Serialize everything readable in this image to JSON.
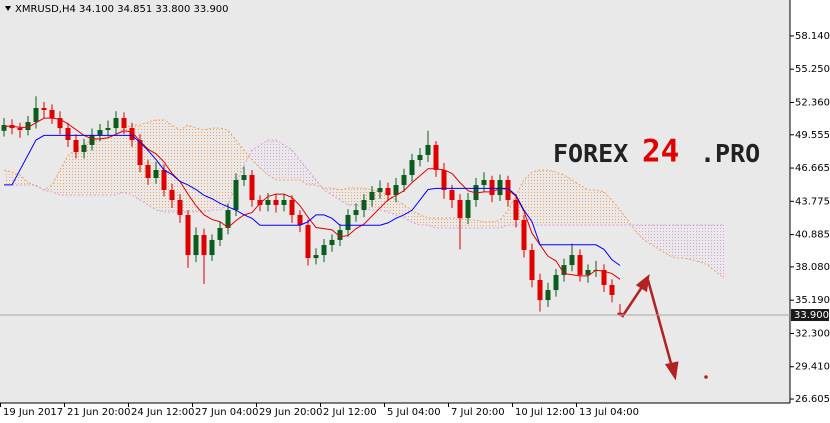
{
  "chart_data": {
    "type": "candlestick",
    "title": "XMRUSD,H4  34.100 34.851 33.800 33.900",
    "watermark": [
      "FOREX",
      "24",
      ".PRO"
    ],
    "categories": [
      "19 Jun 2017",
      null,
      null,
      null,
      null,
      null,
      null,
      null,
      "21 Jun 20:00",
      null,
      null,
      null,
      null,
      null,
      null,
      null,
      "24 Jun 12:00",
      null,
      null,
      null,
      null,
      null,
      null,
      null,
      "27 Jun 04:00",
      null,
      null,
      null,
      null,
      null,
      null,
      null,
      "29 Jun 20:00",
      null,
      null,
      null,
      null,
      null,
      null,
      null,
      "2 Jul 12:00",
      null,
      null,
      null,
      null,
      null,
      null,
      null,
      "5 Jul 04:00",
      null,
      null,
      null,
      null,
      null,
      null,
      null,
      "7 Jul 20:00",
      null,
      null,
      null,
      null,
      null,
      null,
      null,
      "10 Jul 12:00",
      null,
      null,
      null,
      null,
      null,
      null,
      null,
      "13 Jul 04:00",
      null,
      null,
      null,
      null,
      null,
      null,
      null,
      null,
      null,
      null,
      null,
      null,
      null,
      null,
      null,
      null,
      null,
      null
    ],
    "open": [
      49.9,
      50.4,
      50.14,
      49.97,
      50.66,
      51.88,
      51.71,
      51.01,
      50.14,
      49.1,
      48.06,
      48.67,
      49.54,
      49.97,
      50.14,
      51.01,
      50.14,
      49.1,
      46.93,
      45.8,
      46.5,
      44.76,
      43.89,
      42.59,
      39.11,
      40.85,
      39.11,
      40.42,
      41.46,
      43.02,
      45.63,
      46.06,
      43.89,
      43.46,
      43.89,
      43.46,
      43.89,
      42.59,
      41.72,
      38.85,
      39.11,
      39.98,
      40.42,
      41.28,
      42.59,
      43.02,
      43.89,
      44.59,
      44.93,
      44.32,
      45.19,
      46.06,
      47.36,
      47.8,
      48.67,
      46.5,
      44.76,
      43.89,
      42.33,
      43.89,
      45.19,
      45.63,
      44.32,
      45.63,
      43.89,
      42.15,
      39.55,
      36.94,
      35.2,
      36.07,
      37.38,
      38.24,
      39.11,
      37.38,
      37.81,
      37.81,
      36.51,
      34.1,
      null,
      null,
      null,
      null,
      null,
      null,
      null,
      null,
      null,
      null,
      null,
      null,
      null
    ],
    "high": [
      51.0,
      50.9,
      50.6,
      51.2,
      52.9,
      52.4,
      52.2,
      51.6,
      50.6,
      49.6,
      49.2,
      50.1,
      50.5,
      50.8,
      51.6,
      51.5,
      50.6,
      49.6,
      47.4,
      47.2,
      47.0,
      45.3,
      44.4,
      43.0,
      41.5,
      41.4,
      40.9,
      42.0,
      43.6,
      46.2,
      46.8,
      46.5,
      44.3,
      44.5,
      44.4,
      44.4,
      44.3,
      43.0,
      42.2,
      39.7,
      40.5,
      40.9,
      41.8,
      43.1,
      43.6,
      44.4,
      45.1,
      45.6,
      45.4,
      45.8,
      46.6,
      47.9,
      48.4,
      49.9,
      49.0,
      47.1,
      45.2,
      44.4,
      44.5,
      45.8,
      46.3,
      46.0,
      46.1,
      46.0,
      44.4,
      42.6,
      40.1,
      37.5,
      36.7,
      37.9,
      38.8,
      40.1,
      39.6,
      38.3,
      38.6,
      38.3,
      37.0,
      34.85,
      null,
      null,
      null,
      null,
      null,
      null,
      null,
      null,
      null,
      null,
      null,
      null,
      null
    ],
    "low": [
      49.4,
      49.6,
      49.3,
      49.5,
      50.1,
      51.0,
      50.5,
      49.6,
      48.5,
      47.5,
      47.5,
      48.2,
      49.0,
      49.4,
      49.6,
      49.6,
      48.5,
      46.3,
      45.2,
      45.3,
      44.2,
      43.2,
      41.9,
      38.0,
      38.5,
      36.6,
      38.6,
      39.9,
      40.9,
      42.5,
      45.1,
      43.3,
      42.9,
      42.9,
      42.8,
      42.9,
      41.9,
      41.1,
      38.2,
      38.3,
      38.5,
      39.4,
      39.9,
      40.7,
      42.0,
      42.4,
      43.3,
      44.0,
      43.8,
      43.7,
      44.6,
      45.5,
      46.8,
      47.2,
      45.9,
      44.0,
      43.2,
      39.6,
      41.8,
      43.3,
      44.6,
      43.7,
      43.8,
      43.3,
      41.5,
      38.9,
      36.3,
      34.2,
      34.6,
      35.5,
      36.8,
      37.7,
      36.8,
      36.7,
      37.2,
      35.9,
      35.0,
      33.8,
      null,
      null,
      null,
      null,
      null,
      null,
      null,
      null,
      null,
      null,
      null,
      null,
      null
    ],
    "close": [
      50.4,
      50.14,
      49.97,
      50.66,
      51.88,
      51.71,
      51.01,
      50.14,
      49.1,
      48.06,
      48.67,
      49.54,
      49.97,
      50.14,
      51.01,
      50.14,
      49.1,
      46.93,
      45.8,
      46.5,
      44.76,
      43.89,
      42.59,
      39.11,
      40.85,
      39.11,
      40.42,
      41.46,
      43.02,
      45.63,
      46.06,
      43.89,
      43.46,
      43.89,
      43.46,
      43.89,
      42.59,
      41.72,
      38.85,
      39.11,
      39.98,
      40.42,
      41.28,
      42.59,
      43.02,
      43.89,
      44.59,
      44.93,
      44.32,
      45.19,
      46.06,
      47.36,
      47.8,
      48.67,
      46.5,
      44.76,
      43.89,
      42.33,
      43.89,
      45.19,
      45.63,
      44.32,
      45.63,
      43.89,
      42.15,
      39.55,
      36.94,
      35.2,
      36.07,
      37.38,
      38.24,
      39.11,
      37.38,
      37.81,
      37.81,
      36.51,
      35.64,
      33.9,
      null,
      null,
      null,
      null,
      null,
      null,
      null,
      null,
      null,
      null,
      null,
      null,
      null
    ],
    "up_color": "#0b5d1e",
    "down_color": "#e00000",
    "lines": [
      {
        "color": "#e00000",
        "values": [
          50.3,
          50.3,
          50.2,
          50.2,
          50.6,
          51.0,
          51.0,
          50.9,
          50.5,
          50.0,
          49.5,
          49.2,
          49.2,
          49.3,
          49.6,
          49.9,
          49.8,
          49.0,
          48.3,
          47.9,
          47.2,
          46.2,
          45.5,
          44.4,
          43.4,
          42.6,
          42.2,
          42.0,
          41.5,
          42.1,
          42.6,
          42.8,
          43.6,
          44.2,
          44.4,
          44.4,
          44.1,
          43.4,
          42.4,
          41.5,
          41.4,
          41.3,
          40.7,
          40.8,
          41.4,
          41.8,
          42.5,
          43.2,
          43.9,
          44.3,
          44.7,
          45.4,
          46.0,
          46.6,
          46.6,
          46.5,
          46.2,
          45.4,
          44.7,
          44.5,
          44.6,
          44.6,
          44.9,
          44.8,
          44.2,
          42.9,
          41.0,
          40.0,
          39.0,
          38.6,
          37.5,
          37.4,
          37.3,
          37.3,
          37.8,
          37.7,
          37.5,
          37.0,
          null,
          null,
          null,
          null,
          null,
          null,
          null,
          null,
          null,
          null,
          null,
          null,
          null
        ]
      },
      {
        "color": "#0000ff",
        "values": [
          45.2,
          45.2,
          46.5,
          47.8,
          49.1,
          49.5,
          49.5,
          49.5,
          49.5,
          49.5,
          49.5,
          49.5,
          49.5,
          49.5,
          49.5,
          49.5,
          49.5,
          48.9,
          48.2,
          47.4,
          46.5,
          46.1,
          45.5,
          45.2,
          44.8,
          44.3,
          44.0,
          43.6,
          43.3,
          43.0,
          42.6,
          42.3,
          41.7,
          41.7,
          41.7,
          41.7,
          41.7,
          41.7,
          42.0,
          42.6,
          42.6,
          42.3,
          41.7,
          41.7,
          41.7,
          41.7,
          41.7,
          41.7,
          41.9,
          42.3,
          42.6,
          43.0,
          43.9,
          44.8,
          44.9,
          44.9,
          44.9,
          44.9,
          44.9,
          44.9,
          44.9,
          44.9,
          44.9,
          44.9,
          44.3,
          43.0,
          42.0,
          40.0,
          40.0,
          40.0,
          40.0,
          40.0,
          40.0,
          40.0,
          40.0,
          39.6,
          38.7,
          38.2,
          null,
          null,
          null,
          null,
          null,
          null,
          null,
          null,
          null,
          null,
          null,
          null,
          null
        ]
      }
    ],
    "cloud": {
      "span_a": {
        "color": "#f4a460",
        "values": [
          46.5,
          46.32,
          46.06,
          45.45,
          45.11,
          44.76,
          45.19,
          46.5,
          47.8,
          48.23,
          48.67,
          49.1,
          49.1,
          49.27,
          49.54,
          50.14,
          50.4,
          50.4,
          50.66,
          50.84,
          50.84,
          50.4,
          49.97,
          50.4,
          50.14,
          49.97,
          50.14,
          50.14,
          49.97,
          49.1,
          48.23,
          47.36,
          46.67,
          46.06,
          45.63,
          45.63,
          45.63,
          45.63,
          45.19,
          45.19,
          44.93,
          44.93,
          44.76,
          44.93,
          44.93,
          44.93,
          44.76,
          44.59,
          44.32,
          43.89,
          43.46,
          43.02,
          42.59,
          42.33,
          42.33,
          42.33,
          42.33,
          42.33,
          42.15,
          42.15,
          41.98,
          41.98,
          42.15,
          43.02,
          44.32,
          45.63,
          46.32,
          46.5,
          46.5,
          46.32,
          46.06,
          45.63,
          45.19,
          44.76,
          44.76,
          44.59,
          43.89,
          43.02,
          42.15,
          41.11,
          40.42,
          39.98,
          39.55,
          39.11,
          38.85,
          38.85,
          38.68,
          38.51,
          38.24,
          37.64,
          37.12
        ]
      },
      "span_b": {
        "color": "#d8a0d8",
        "values": [
          45.19,
          45.19,
          45.19,
          45.19,
          45.19,
          44.76,
          44.59,
          44.32,
          44.32,
          44.32,
          44.32,
          44.32,
          44.32,
          44.32,
          44.32,
          44.59,
          44.32,
          43.89,
          43.46,
          43.02,
          42.85,
          42.85,
          42.85,
          42.85,
          42.85,
          42.85,
          43.02,
          43.02,
          43.46,
          45.19,
          46.93,
          48.23,
          48.67,
          49.1,
          49.1,
          48.67,
          48.23,
          47.36,
          46.5,
          45.63,
          44.76,
          44.32,
          43.89,
          43.46,
          43.46,
          43.2,
          43.02,
          43.02,
          42.85,
          42.59,
          42.33,
          41.98,
          41.72,
          41.72,
          41.46,
          41.46,
          41.46,
          41.46,
          41.46,
          41.46,
          41.46,
          41.46,
          41.46,
          41.72,
          41.72,
          41.72,
          41.72,
          41.72,
          41.72,
          41.72,
          41.72,
          41.72,
          41.72,
          41.72,
          41.72,
          41.72,
          41.72,
          41.72,
          41.72,
          41.72,
          41.72,
          41.72,
          41.72,
          41.72,
          41.72,
          41.72,
          41.72,
          41.72,
          41.72,
          41.72,
          41.72
        ]
      }
    },
    "ylim": [
      26.26,
      61.26
    ],
    "yticks": [
      {
        "value": 26.605,
        "label": "26.605"
      },
      {
        "value": 29.41,
        "label": "29.410"
      },
      {
        "value": 32.3,
        "label": "32.300"
      },
      {
        "value": 35.19,
        "label": "35.190"
      },
      {
        "value": 38.08,
        "label": "38.080"
      },
      {
        "value": 40.885,
        "label": "40.885"
      },
      {
        "value": 43.775,
        "label": "43.775"
      },
      {
        "value": 46.665,
        "label": "46.665"
      },
      {
        "value": 49.555,
        "label": "49.555"
      },
      {
        "value": 52.36,
        "label": "52.360"
      },
      {
        "value": 55.25,
        "label": "55.250"
      },
      {
        "value": 58.14,
        "label": "58.140"
      }
    ],
    "current_price": {
      "value": 33.9,
      "label": "33.900"
    }
  }
}
